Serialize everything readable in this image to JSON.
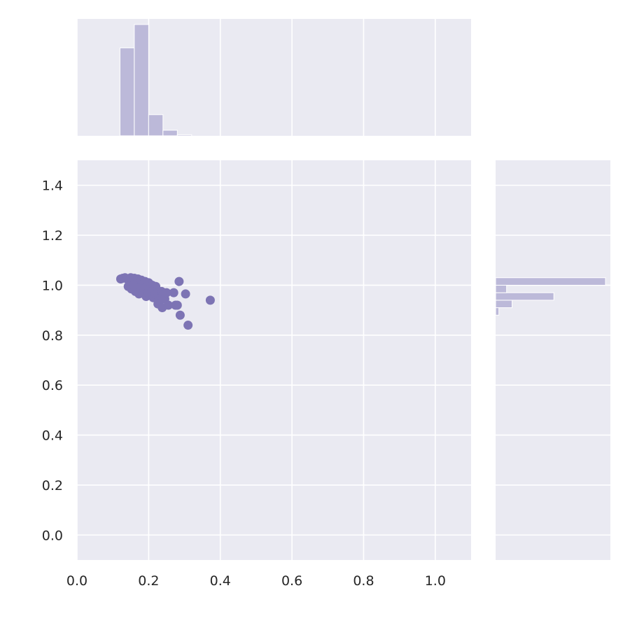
{
  "chart_data": {
    "type": "scatter",
    "title": "",
    "xlabel": "",
    "ylabel": "",
    "xlim": [
      0.0,
      1.1
    ],
    "ylim": [
      -0.1,
      1.5
    ],
    "grid": true,
    "colors": {
      "background": "#eaeaf2",
      "grid": "#ffffff",
      "marker": "#7d74b4",
      "hist_bar": "#bcb9d9"
    },
    "x_ticks": [
      {
        "value": 0.0,
        "label": "0.0"
      },
      {
        "value": 0.2,
        "label": "0.2"
      },
      {
        "value": 0.4,
        "label": "0.4"
      },
      {
        "value": 0.6,
        "label": "0.6"
      },
      {
        "value": 0.8,
        "label": "0.8"
      },
      {
        "value": 1.0,
        "label": "1.0"
      }
    ],
    "y_ticks": [
      {
        "value": 0.0,
        "label": "0.0"
      },
      {
        "value": 0.2,
        "label": "0.2"
      },
      {
        "value": 0.4,
        "label": "0.4"
      },
      {
        "value": 0.6,
        "label": "0.6"
      },
      {
        "value": 0.8,
        "label": "0.8"
      },
      {
        "value": 1.0,
        "label": "1.0"
      },
      {
        "value": 1.2,
        "label": "1.2"
      },
      {
        "value": 1.4,
        "label": "1.4"
      }
    ],
    "points": [
      {
        "x": 0.122,
        "y": 1.025
      },
      {
        "x": 0.128,
        "y": 1.028
      },
      {
        "x": 0.134,
        "y": 1.03
      },
      {
        "x": 0.14,
        "y": 1.025
      },
      {
        "x": 0.146,
        "y": 1.02
      },
      {
        "x": 0.15,
        "y": 1.03
      },
      {
        "x": 0.155,
        "y": 1.015
      },
      {
        "x": 0.16,
        "y": 1.028
      },
      {
        "x": 0.165,
        "y": 1.01
      },
      {
        "x": 0.17,
        "y": 1.025
      },
      {
        "x": 0.175,
        "y": 1.0
      },
      {
        "x": 0.18,
        "y": 1.02
      },
      {
        "x": 0.185,
        "y": 1.005
      },
      {
        "x": 0.19,
        "y": 1.015
      },
      {
        "x": 0.195,
        "y": 0.995
      },
      {
        "x": 0.2,
        "y": 1.01
      },
      {
        "x": 0.205,
        "y": 0.99
      },
      {
        "x": 0.21,
        "y": 1.0
      },
      {
        "x": 0.215,
        "y": 0.985
      },
      {
        "x": 0.22,
        "y": 0.995
      },
      {
        "x": 0.143,
        "y": 0.995
      },
      {
        "x": 0.152,
        "y": 0.985
      },
      {
        "x": 0.158,
        "y": 1.0
      },
      {
        "x": 0.163,
        "y": 0.975
      },
      {
        "x": 0.168,
        "y": 0.99
      },
      {
        "x": 0.173,
        "y": 0.965
      },
      {
        "x": 0.178,
        "y": 0.98
      },
      {
        "x": 0.183,
        "y": 0.97
      },
      {
        "x": 0.188,
        "y": 0.985
      },
      {
        "x": 0.193,
        "y": 0.955
      },
      {
        "x": 0.198,
        "y": 0.97
      },
      {
        "x": 0.203,
        "y": 0.96
      },
      {
        "x": 0.208,
        "y": 0.975
      },
      {
        "x": 0.213,
        "y": 0.95
      },
      {
        "x": 0.218,
        "y": 0.965
      },
      {
        "x": 0.225,
        "y": 0.97
      },
      {
        "x": 0.228,
        "y": 0.955
      },
      {
        "x": 0.232,
        "y": 0.94
      },
      {
        "x": 0.236,
        "y": 0.975
      },
      {
        "x": 0.24,
        "y": 0.96
      },
      {
        "x": 0.245,
        "y": 0.945
      },
      {
        "x": 0.25,
        "y": 0.97
      },
      {
        "x": 0.226,
        "y": 0.925
      },
      {
        "x": 0.238,
        "y": 0.91
      },
      {
        "x": 0.255,
        "y": 0.92
      },
      {
        "x": 0.27,
        "y": 0.97
      },
      {
        "x": 0.275,
        "y": 0.92
      },
      {
        "x": 0.28,
        "y": 0.92
      },
      {
        "x": 0.285,
        "y": 1.015
      },
      {
        "x": 0.288,
        "y": 0.88
      },
      {
        "x": 0.303,
        "y": 0.965
      },
      {
        "x": 0.31,
        "y": 0.84
      },
      {
        "x": 0.372,
        "y": 0.94
      }
    ],
    "marginal_x_hist": {
      "bins": [
        {
          "x0": 0.12,
          "x1": 0.16,
          "height": 0.79
        },
        {
          "x0": 0.16,
          "x1": 0.2,
          "height": 1.0
        },
        {
          "x0": 0.2,
          "x1": 0.24,
          "height": 0.19
        },
        {
          "x0": 0.24,
          "x1": 0.28,
          "height": 0.05
        },
        {
          "x0": 0.28,
          "x1": 0.32,
          "height": 0.01
        }
      ]
    },
    "marginal_y_hist": {
      "bins": [
        {
          "y0": 0.88,
          "y1": 0.91,
          "width": 0.03
        },
        {
          "y0": 0.91,
          "y1": 0.94,
          "width": 0.15
        },
        {
          "y0": 0.94,
          "y1": 0.97,
          "width": 0.53
        },
        {
          "y0": 0.97,
          "y1": 1.0,
          "width": 0.1
        },
        {
          "y0": 1.0,
          "y1": 1.03,
          "width": 1.0
        }
      ]
    }
  }
}
